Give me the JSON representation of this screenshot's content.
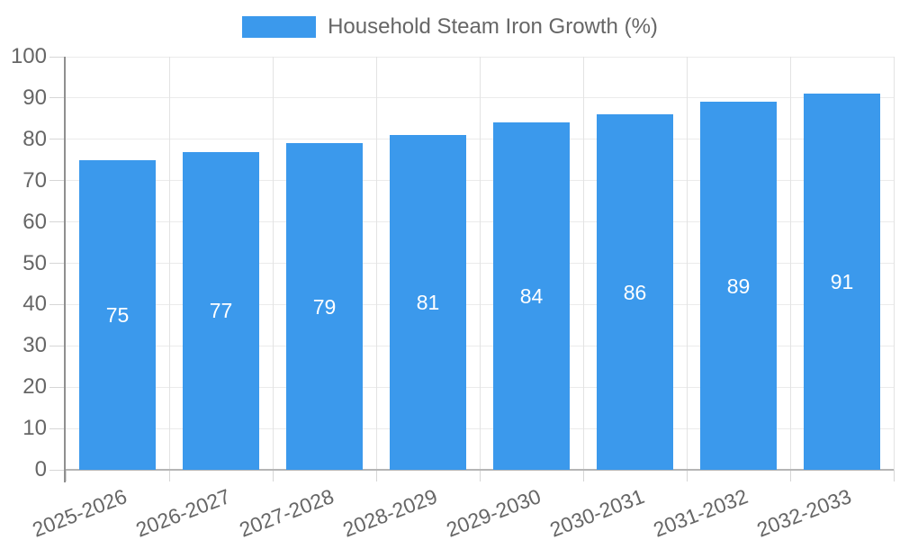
{
  "legend": {
    "label": "Household Steam Iron Growth (%)"
  },
  "chart_data": {
    "type": "bar",
    "title": "",
    "xlabel": "",
    "ylabel": "",
    "series_name": "Household Steam Iron Growth (%)",
    "categories": [
      "2025-2026",
      "2026-2027",
      "2027-2028",
      "2028-2029",
      "2029-2030",
      "2030-2031",
      "2031-2032",
      "2032-2033"
    ],
    "values": [
      75,
      77,
      79,
      81,
      84,
      86,
      89,
      91
    ],
    "value_labels": [
      "75",
      "77",
      "79",
      "81",
      "84",
      "86",
      "89",
      "91"
    ],
    "ylim": [
      0,
      100
    ],
    "ytick_step": 10,
    "yticks": [
      "0",
      "10",
      "20",
      "30",
      "40",
      "50",
      "60",
      "70",
      "80",
      "90",
      "100"
    ],
    "grid": true,
    "legend_position": "top",
    "colors": {
      "bar": "#3B99EC",
      "bar_value_text": "#ffffff",
      "axis_text": "#666666",
      "grid_h": "#ebebeb",
      "grid_v": "#e3e3e3",
      "tick": "#d6d6d6",
      "axis_line_y": "#8f8f8f",
      "axis_line_x": "#b5b5b5",
      "background": "#ffffff"
    }
  }
}
